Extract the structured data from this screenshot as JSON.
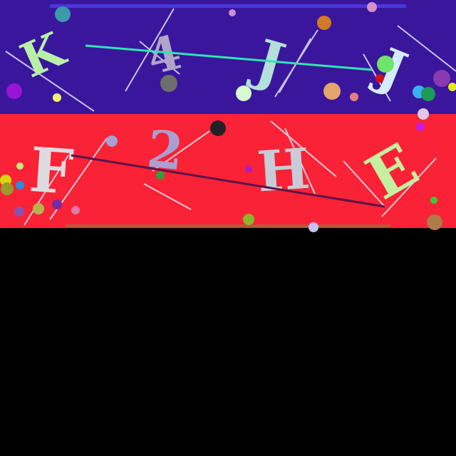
{
  "colors": {
    "page_background": "#000000",
    "band_top": "#3a169c",
    "band_bottom": "#fa2236",
    "bar_top": "#4a36dc",
    "bar_bottom": "#b45a3a",
    "long_line_top": "#2ee6b0",
    "long_line_bottom": "#5a1448"
  },
  "captcha": {
    "top_row": [
      {
        "char": "K",
        "color": "#b8f0a8"
      },
      {
        "char": "4",
        "color": "#b0a4c8"
      },
      {
        "char": "J",
        "color": "#b4e0dc"
      },
      {
        "char": "J",
        "color": "#d4ecff"
      }
    ],
    "bottom_row": [
      {
        "char": "F",
        "color": "#dcdce0"
      },
      {
        "char": "2",
        "color": "#a8a0d0"
      },
      {
        "char": "H",
        "color": "#c8ccd8"
      },
      {
        "char": "E",
        "color": "#c4f0a0"
      }
    ]
  }
}
